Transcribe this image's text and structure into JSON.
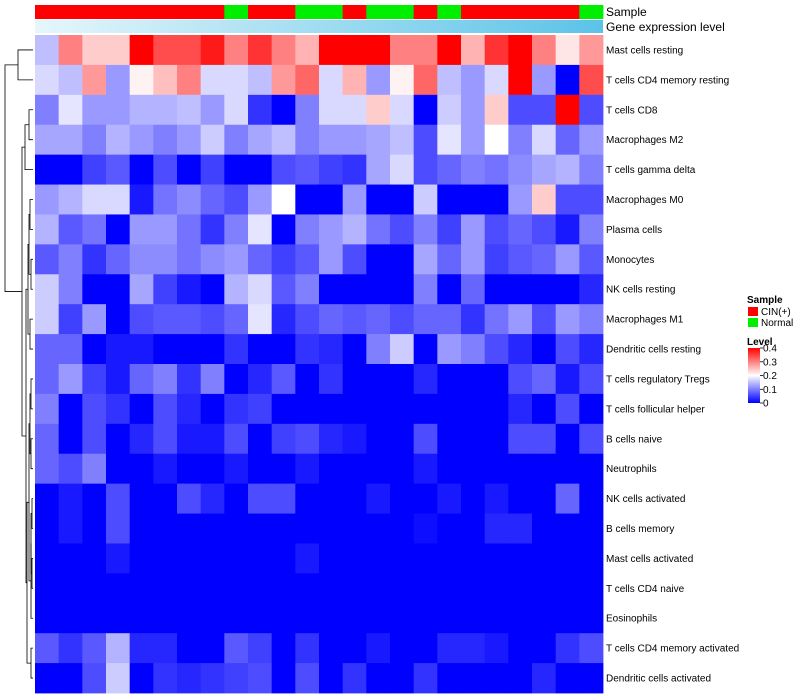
{
  "chart_data": {
    "type": "heatmap",
    "title": "",
    "xlabel": "",
    "ylabel": "",
    "annotation_tracks": [
      {
        "name": "Sample",
        "label": "Sample"
      },
      {
        "name": "Gene expression level",
        "label": "Gene expression level"
      }
    ],
    "samples": [
      "CIN(+)",
      "CIN(+)",
      "CIN(+)",
      "CIN(+)",
      "CIN(+)",
      "CIN(+)",
      "CIN(+)",
      "CIN(+)",
      "Normal",
      "CIN(+)",
      "CIN(+)",
      "Normal",
      "Normal",
      "CIN(+)",
      "Normal",
      "Normal",
      "CIN(+)",
      "Normal",
      "CIN(+)",
      "CIN(+)",
      "CIN(+)",
      "CIN(+)",
      "CIN(+)",
      "Normal"
    ],
    "rows": [
      "Mast cells resting",
      "T cells CD4 memory resting",
      "T cells CD8",
      "Macrophages M2",
      "T cells gamma delta",
      "Macrophages M0",
      "Plasma cells",
      "Monocytes",
      "NK cells resting",
      "Macrophages M1",
      "Dendritic cells resting",
      "T cells regulatory  Tregs",
      "T cells follicular helper",
      "B cells naive",
      "Neutrophils",
      "NK cells activated",
      "B cells memory",
      "Mast cells activated",
      "T cells CD4 naive",
      "Eosinophils",
      "T cells CD4 memory activated",
      "Dendritic cells activated"
    ],
    "values": [
      [
        0.15,
        0.3,
        0.24,
        0.24,
        0.4,
        0.34,
        0.34,
        0.38,
        0.3,
        0.36,
        0.3,
        0.26,
        0.4,
        0.4,
        0.4,
        0.3,
        0.3,
        0.4,
        0.26,
        0.36,
        0.4,
        0.3,
        0.22,
        0.28
      ],
      [
        0.17,
        0.15,
        0.28,
        0.12,
        0.21,
        0.25,
        0.3,
        0.17,
        0.17,
        0.15,
        0.28,
        0.32,
        0.17,
        0.26,
        0.12,
        0.21,
        0.32,
        0.15,
        0.12,
        0.17,
        0.4,
        0.12,
        0.0,
        0.34
      ],
      [
        0.1,
        0.18,
        0.12,
        0.12,
        0.14,
        0.14,
        0.15,
        0.12,
        0.17,
        0.04,
        0.0,
        0.1,
        0.17,
        0.17,
        0.24,
        0.17,
        0.0,
        0.16,
        0.12,
        0.24,
        0.06,
        0.06,
        0.4,
        0.06
      ],
      [
        0.13,
        0.13,
        0.1,
        0.14,
        0.12,
        0.1,
        0.12,
        0.16,
        0.1,
        0.13,
        0.15,
        0.1,
        0.12,
        0.12,
        0.13,
        0.15,
        0.06,
        0.18,
        0.12,
        0.2,
        0.1,
        0.17,
        0.08,
        0.12
      ],
      [
        0.0,
        0.0,
        0.05,
        0.07,
        0.0,
        0.06,
        0.0,
        0.05,
        0.0,
        0.0,
        0.06,
        0.07,
        0.05,
        0.04,
        0.13,
        0.17,
        0.06,
        0.08,
        0.1,
        0.09,
        0.11,
        0.13,
        0.14,
        0.1
      ],
      [
        0.12,
        0.14,
        0.17,
        0.17,
        0.02,
        0.09,
        0.11,
        0.08,
        0.06,
        0.12,
        0.2,
        0.0,
        0.0,
        0.12,
        0.0,
        0.0,
        0.16,
        0.0,
        0.0,
        0.0,
        0.12,
        0.24,
        0.06,
        0.06
      ],
      [
        0.14,
        0.07,
        0.09,
        0.0,
        0.12,
        0.12,
        0.09,
        0.04,
        0.1,
        0.18,
        0.0,
        0.1,
        0.12,
        0.14,
        0.09,
        0.06,
        0.1,
        0.05,
        0.12,
        0.06,
        0.08,
        0.06,
        0.02,
        0.1
      ],
      [
        0.07,
        0.1,
        0.04,
        0.08,
        0.11,
        0.11,
        0.09,
        0.11,
        0.12,
        0.08,
        0.05,
        0.07,
        0.12,
        0.06,
        0.0,
        0.0,
        0.13,
        0.08,
        0.12,
        0.05,
        0.07,
        0.08,
        0.12,
        0.07
      ],
      [
        0.16,
        0.1,
        0.0,
        0.0,
        0.13,
        0.05,
        0.02,
        0.0,
        0.14,
        0.17,
        0.07,
        0.1,
        0.0,
        0.0,
        0.0,
        0.0,
        0.1,
        0.0,
        0.08,
        0.0,
        0.0,
        0.0,
        0.0,
        0.03
      ],
      [
        0.16,
        0.05,
        0.12,
        0.0,
        0.06,
        0.07,
        0.07,
        0.06,
        0.08,
        0.18,
        0.03,
        0.06,
        0.08,
        0.07,
        0.08,
        0.06,
        0.08,
        0.08,
        0.04,
        0.09,
        0.12,
        0.06,
        0.12,
        0.1
      ],
      [
        0.08,
        0.08,
        0.0,
        0.02,
        0.02,
        0.0,
        0.0,
        0.0,
        0.04,
        0.0,
        0.0,
        0.04,
        0.03,
        0.0,
        0.1,
        0.16,
        0.0,
        0.12,
        0.1,
        0.06,
        0.03,
        0.0,
        0.06,
        0.03
      ],
      [
        0.08,
        0.12,
        0.05,
        0.02,
        0.08,
        0.1,
        0.04,
        0.1,
        0.0,
        0.03,
        0.07,
        0.0,
        0.04,
        0.0,
        0.0,
        0.0,
        0.03,
        0.0,
        0.0,
        0.0,
        0.06,
        0.08,
        0.02,
        0.06
      ],
      [
        0.1,
        0.0,
        0.06,
        0.04,
        0.0,
        0.06,
        0.03,
        0.0,
        0.04,
        0.05,
        0.0,
        0.0,
        0.0,
        0.0,
        0.0,
        0.0,
        0.0,
        0.0,
        0.0,
        0.0,
        0.03,
        0.0,
        0.06,
        0.0
      ],
      [
        0.08,
        0.0,
        0.06,
        0.0,
        0.03,
        0.06,
        0.02,
        0.02,
        0.06,
        0.0,
        0.05,
        0.06,
        0.03,
        0.02,
        0.0,
        0.0,
        0.06,
        0.0,
        0.0,
        0.0,
        0.06,
        0.06,
        0.0,
        0.06
      ],
      [
        0.08,
        0.06,
        0.1,
        0.0,
        0.0,
        0.02,
        0.0,
        0.0,
        0.02,
        0.0,
        0.0,
        0.02,
        0.0,
        0.0,
        0.0,
        0.0,
        0.02,
        0.0,
        0.0,
        0.0,
        0.0,
        0.0,
        0.0,
        0.0
      ],
      [
        0.0,
        0.02,
        0.0,
        0.06,
        0.0,
        0.0,
        0.06,
        0.03,
        0.0,
        0.06,
        0.06,
        0.0,
        0.0,
        0.0,
        0.02,
        0.0,
        0.0,
        0.02,
        0.0,
        0.02,
        0.0,
        0.0,
        0.08,
        0.0
      ],
      [
        0.0,
        0.02,
        0.0,
        0.06,
        0.0,
        0.0,
        0.0,
        0.0,
        0.0,
        0.0,
        0.0,
        0.0,
        0.0,
        0.0,
        0.0,
        0.0,
        0.01,
        0.0,
        0.0,
        0.03,
        0.03,
        0.0,
        0.0,
        0.0
      ],
      [
        0.0,
        0.0,
        0.0,
        0.02,
        0.0,
        0.0,
        0.0,
        0.0,
        0.0,
        0.0,
        0.0,
        0.02,
        0.0,
        0.0,
        0.0,
        0.0,
        0.0,
        0.0,
        0.0,
        0.0,
        0.0,
        0.0,
        0.0,
        0.0
      ],
      [
        0.0,
        0.0,
        0.0,
        0.0,
        0.0,
        0.0,
        0.0,
        0.0,
        0.0,
        0.0,
        0.0,
        0.0,
        0.0,
        0.0,
        0.0,
        0.0,
        0.0,
        0.0,
        0.0,
        0.0,
        0.0,
        0.0,
        0.0,
        0.0
      ],
      [
        0.0,
        0.0,
        0.0,
        0.0,
        0.0,
        0.0,
        0.0,
        0.0,
        0.0,
        0.0,
        0.0,
        0.0,
        0.0,
        0.0,
        0.0,
        0.0,
        0.0,
        0.0,
        0.0,
        0.0,
        0.0,
        0.0,
        0.0,
        0.0
      ],
      [
        0.07,
        0.04,
        0.07,
        0.14,
        0.03,
        0.03,
        0.0,
        0.0,
        0.07,
        0.05,
        0.0,
        0.04,
        0.0,
        0.0,
        0.02,
        0.0,
        0.0,
        0.03,
        0.03,
        0.02,
        0.0,
        0.0,
        0.04,
        0.06
      ],
      [
        0.0,
        0.0,
        0.06,
        0.16,
        0.0,
        0.04,
        0.03,
        0.04,
        0.05,
        0.06,
        0.0,
        0.06,
        0.0,
        0.04,
        0.0,
        0.0,
        0.04,
        0.0,
        0.0,
        0.0,
        0.0,
        0.03,
        0.0,
        0.0
      ]
    ],
    "expression_track": "Gene expression level",
    "expression_track_color": "#5bc3e8",
    "legend_placement": "right",
    "legends": [
      {
        "title": "Sample",
        "entries": [
          {
            "label": "CIN(+)",
            "color": "#ff0000"
          },
          {
            "label": "Normal",
            "color": "#00ee00"
          }
        ]
      },
      {
        "title": "Level",
        "type": "gradient",
        "colors": [
          "#0000ff",
          "#ffffff",
          "#ff0000"
        ],
        "ticks": [
          "0.4",
          "0.3",
          "0.2",
          "0.1",
          "0"
        ],
        "tick_values": [
          0.4,
          0.3,
          0.2,
          0.1,
          0.0
        ]
      }
    ],
    "value_range": [
      0,
      0.4
    ],
    "row_dendrogram": true
  },
  "colors": {
    "low": "#0000ff",
    "mid": "#ffffff",
    "high": "#ff0000",
    "cin": "#ff0000",
    "normal": "#00ee00"
  }
}
